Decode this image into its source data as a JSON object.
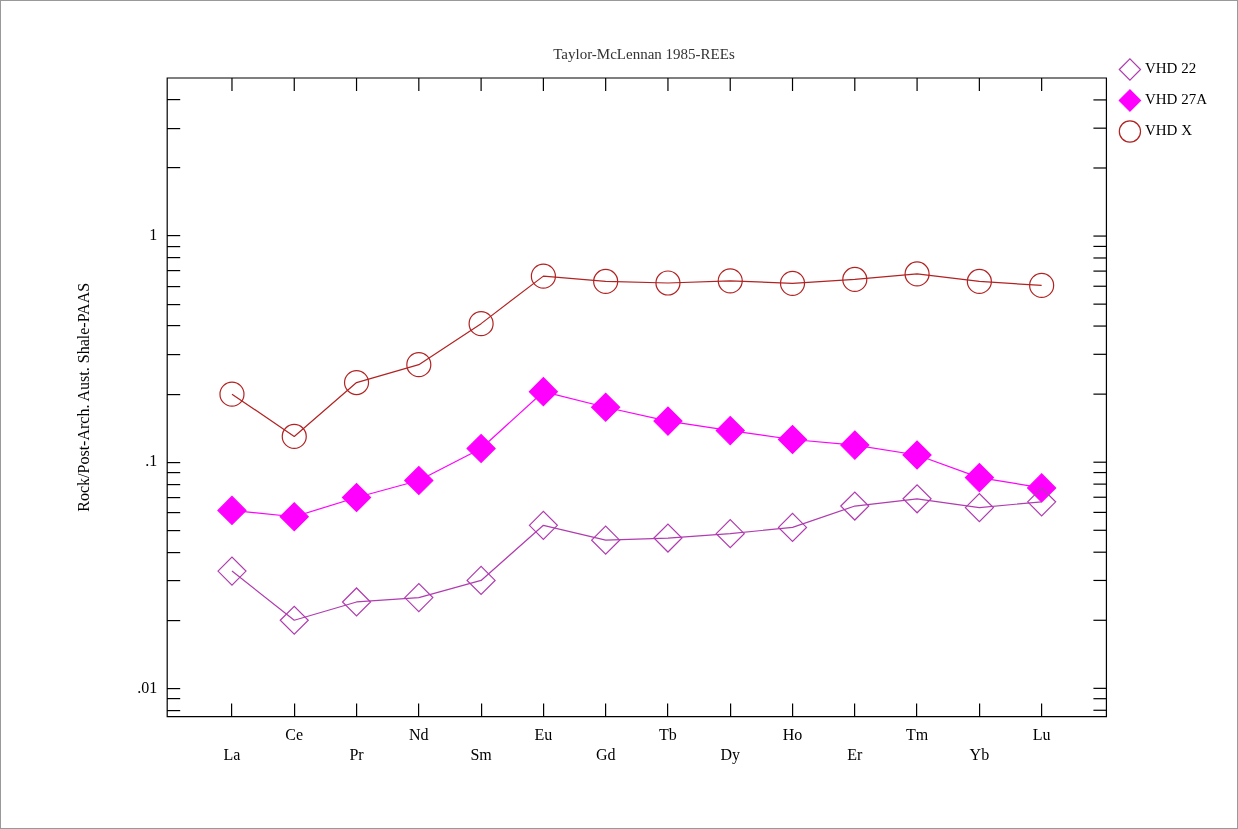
{
  "chart_data": {
    "type": "line",
    "title": "Taylor-McLennan 1985-REEs",
    "ylabel": "Rock/Post-Arch. Aust. Shale-PAAS",
    "categories": [
      "La",
      "Ce",
      "Pr",
      "Nd",
      "Sm",
      "Eu",
      "Gd",
      "Tb",
      "Dy",
      "Ho",
      "Er",
      "Tm",
      "Yb",
      "Lu"
    ],
    "series": [
      {
        "name": "VHD 22",
        "color": "#b03cb0",
        "marker": "diamond",
        "values": [
          0.033,
          0.02,
          0.0241,
          0.0252,
          0.03,
          0.0526,
          0.0452,
          0.0462,
          0.0483,
          0.0515,
          0.064,
          0.0689,
          0.063,
          0.0668
        ]
      },
      {
        "name": "VHD 27A",
        "color": "#ff00ff",
        "marker": "diamond",
        "values": [
          0.0612,
          0.0574,
          0.0698,
          0.083,
          0.115,
          0.205,
          0.175,
          0.152,
          0.138,
          0.126,
          0.119,
          0.1076,
          0.0855,
          0.077
        ]
      },
      {
        "name": "VHD X",
        "color": "#b22222",
        "marker": "circle",
        "values": [
          0.2,
          0.13,
          0.225,
          0.27,
          0.41,
          0.665,
          0.63,
          0.62,
          0.634,
          0.618,
          0.643,
          0.68,
          0.63,
          0.605
        ]
      }
    ],
    "log": "y",
    "ylim": [
      0.0075,
      5
    ],
    "yticks": [
      {
        "value": 0.008,
        "label": null
      },
      {
        "value": 0.009,
        "label": null
      },
      {
        "value": 0.01,
        "label": ".01"
      },
      {
        "value": 0.02,
        "label": null
      },
      {
        "value": 0.03,
        "label": null
      },
      {
        "value": 0.04,
        "label": null
      },
      {
        "value": 0.05,
        "label": null
      },
      {
        "value": 0.06,
        "label": null
      },
      {
        "value": 0.07,
        "label": null
      },
      {
        "value": 0.08,
        "label": null
      },
      {
        "value": 0.09,
        "label": null
      },
      {
        "value": 0.1,
        "label": ".1"
      },
      {
        "value": 0.2,
        "label": null
      },
      {
        "value": 0.3,
        "label": null
      },
      {
        "value": 0.4,
        "label": null
      },
      {
        "value": 0.5,
        "label": null
      },
      {
        "value": 0.6,
        "label": null
      },
      {
        "value": 0.7,
        "label": null
      },
      {
        "value": 0.8,
        "label": null
      },
      {
        "value": 0.9,
        "label": null
      },
      {
        "value": 1,
        "label": "1"
      },
      {
        "value": 2,
        "label": null
      },
      {
        "value": 3,
        "label": null
      },
      {
        "value": 4,
        "label": null
      }
    ],
    "grid": false,
    "legend": "top right",
    "line_style": "solid"
  }
}
